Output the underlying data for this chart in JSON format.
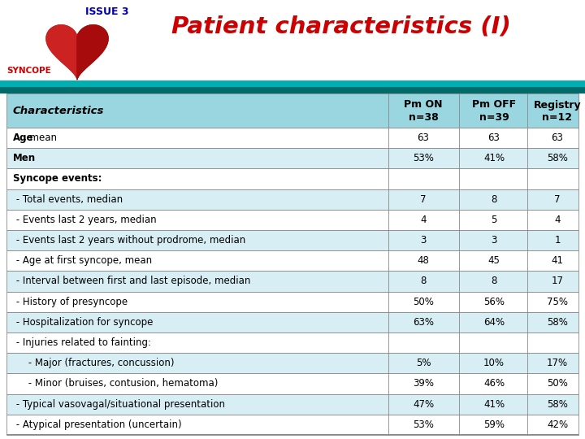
{
  "title": "Patient characteristics (I)",
  "issue_text": "ISSUE 3",
  "syncope_text": "SYNCOPE",
  "rows": [
    {
      "label": "Age, mean",
      "bold": "Age",
      "rest": ", mean",
      "values": [
        "63",
        "63",
        "63"
      ],
      "bg": "white",
      "type": "bold_split"
    },
    {
      "label": "Men",
      "bold": "Men",
      "rest": "",
      "values": [
        "53%",
        "41%",
        "58%"
      ],
      "bg": "light",
      "type": "bold_split"
    },
    {
      "label": "Syncope events:",
      "bold": "Syncope events:",
      "rest": "",
      "values": [
        "",
        "",
        ""
      ],
      "bg": "white",
      "type": "section"
    },
    {
      "label": " - Total events, median",
      "bold": "",
      "rest": "",
      "values": [
        "7",
        "8",
        "7"
      ],
      "bg": "light",
      "type": "normal"
    },
    {
      "label": " - Events last 2 years, median",
      "bold": "",
      "rest": "",
      "values": [
        "4",
        "5",
        "4"
      ],
      "bg": "white",
      "type": "normal"
    },
    {
      "label": " - Events last 2 years without prodrome, median",
      "bold": "",
      "rest": "",
      "values": [
        "3",
        "3",
        "1"
      ],
      "bg": "light",
      "type": "normal"
    },
    {
      "label": " - Age at first syncope, mean",
      "bold": "",
      "rest": "",
      "values": [
        "48",
        "45",
        "41"
      ],
      "bg": "white",
      "type": "normal"
    },
    {
      "label": " - Interval between first and last episode, median",
      "bold": "",
      "rest": "",
      "values": [
        "8",
        "8",
        "17"
      ],
      "bg": "light",
      "type": "normal"
    },
    {
      "label": " - History of presyncope",
      "bold": "",
      "rest": "",
      "values": [
        "50%",
        "56%",
        "75%"
      ],
      "bg": "white",
      "type": "normal"
    },
    {
      "label": " - Hospitalization for syncope",
      "bold": "",
      "rest": "",
      "values": [
        "63%",
        "64%",
        "58%"
      ],
      "bg": "light",
      "type": "normal"
    },
    {
      "label": " - Injuries related to fainting:",
      "bold": "",
      "rest": "",
      "values": [
        "",
        "",
        ""
      ],
      "bg": "white",
      "type": "normal"
    },
    {
      "label": "     - Major (fractures, concussion)",
      "bold": "",
      "rest": "",
      "values": [
        "5%",
        "10%",
        "17%"
      ],
      "bg": "light",
      "type": "normal"
    },
    {
      "label": "     - Minor (bruises, contusion, hematoma)",
      "bold": "",
      "rest": "",
      "values": [
        "39%",
        "46%",
        "50%"
      ],
      "bg": "white",
      "type": "normal"
    },
    {
      "label": " - Typical vasovagal/situational presentation",
      "bold": "",
      "rest": "",
      "values": [
        "47%",
        "41%",
        "58%"
      ],
      "bg": "light",
      "type": "normal"
    },
    {
      "label": " - Atypical presentation (uncertain)",
      "bold": "",
      "rest": "",
      "values": [
        "53%",
        "59%",
        "42%"
      ],
      "bg": "white",
      "type": "normal"
    }
  ],
  "col_headers_line1": [
    "Pm ON",
    "Pm OFF",
    "Registry"
  ],
  "col_headers_line2": [
    "n=38",
    "n=39",
    "n=12"
  ],
  "title_color": "#cc0000",
  "issue_color": "#0000aa",
  "syncope_color": "#cc0000",
  "header_bg": "#99d6df",
  "light_bg": "#d6eef4",
  "white_bg": "#ffffff",
  "teal_dark": "#006b6b",
  "teal_light": "#00b0b0",
  "border_color": "#888888",
  "background": "#ffffff"
}
